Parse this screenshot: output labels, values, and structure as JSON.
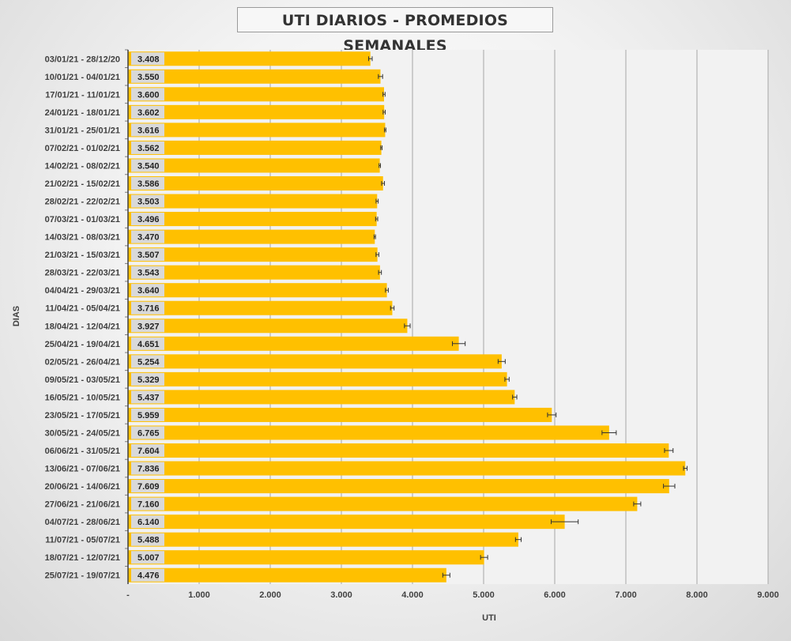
{
  "chart_data": {
    "type": "bar",
    "orientation": "horizontal",
    "title": "UTI DIARIOS - PROMEDIOS SEMANALES",
    "xlabel": "UTI",
    "ylabel": "DIAS",
    "xlim": [
      0,
      9000
    ],
    "x_ticks": [
      {
        "value": 0,
        "label": "-"
      },
      {
        "value": 1000,
        "label": "1.000"
      },
      {
        "value": 2000,
        "label": "2.000"
      },
      {
        "value": 3000,
        "label": "3.000"
      },
      {
        "value": 4000,
        "label": "4.000"
      },
      {
        "value": 5000,
        "label": "5.000"
      },
      {
        "value": 6000,
        "label": "6.000"
      },
      {
        "value": 7000,
        "label": "7.000"
      },
      {
        "value": 8000,
        "label": "8.000"
      },
      {
        "value": 9000,
        "label": "9.000"
      }
    ],
    "grid": true,
    "legend": "none",
    "colors": {
      "bar": "#FFC000",
      "grid": "#a6a6a6",
      "plot_bg": "#f2f2f2",
      "label_bg": "#d9d9d9"
    },
    "categories": [
      "03/01/21 - 28/12/20",
      "10/01/21 - 04/01/21",
      "17/01/21 - 11/01/21",
      "24/01/21 - 18/01/21",
      "31/01/21 - 25/01/21",
      "07/02/21 - 01/02/21",
      "14/02/21 - 08/02/21",
      "21/02/21 - 15/02/21",
      "28/02/21 - 22/02/21",
      "07/03/21 - 01/03/21",
      "14/03/21 - 08/03/21",
      "21/03/21 - 15/03/21",
      "28/03/21 - 22/03/21",
      "04/04/21 - 29/03/21",
      "11/04/21 - 05/04/21",
      "18/04/21 - 12/04/21",
      "25/04/21 - 19/04/21",
      "02/05/21 - 26/04/21",
      "09/05/21 - 03/05/21",
      "16/05/21 - 10/05/21",
      "23/05/21 - 17/05/21",
      "30/05/21 - 24/05/21",
      "06/06/21 - 31/05/21",
      "13/06/21 - 07/06/21",
      "20/06/21 - 14/06/21",
      "27/06/21 - 21/06/21",
      "04/07/21 - 28/06/21",
      "11/07/21 - 05/07/21",
      "18/07/21 - 12/07/21",
      "25/07/21 - 19/07/21"
    ],
    "values": [
      3408,
      3550,
      3600,
      3602,
      3616,
      3562,
      3540,
      3586,
      3503,
      3496,
      3470,
      3507,
      3543,
      3640,
      3716,
      3927,
      4651,
      5254,
      5329,
      5437,
      5959,
      6765,
      7604,
      7836,
      7609,
      7160,
      6140,
      5488,
      5007,
      4476
    ],
    "value_labels": [
      "3.408",
      "3.550",
      "3.600",
      "3.602",
      "3.616",
      "3.562",
      "3.540",
      "3.586",
      "3.503",
      "3.496",
      "3.470",
      "3.507",
      "3.543",
      "3.640",
      "3.716",
      "3.927",
      "4.651",
      "5.254",
      "5.329",
      "5.437",
      "5.959",
      "6.765",
      "7.604",
      "7.836",
      "7.609",
      "7.160",
      "6.140",
      "5.488",
      "5.007",
      "4.476"
    ],
    "error": [
      25,
      30,
      15,
      15,
      10,
      10,
      10,
      20,
      15,
      15,
      10,
      20,
      20,
      20,
      25,
      40,
      90,
      50,
      30,
      30,
      60,
      100,
      60,
      25,
      80,
      50,
      190,
      40,
      50,
      50
    ]
  }
}
